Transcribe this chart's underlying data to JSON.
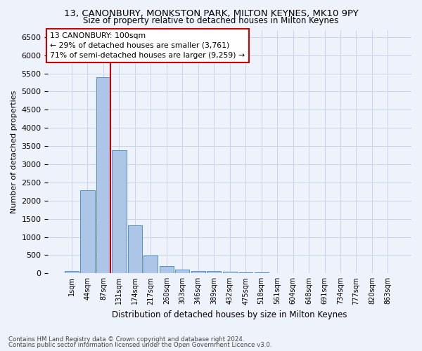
{
  "title": "13, CANONBURY, MONKSTON PARK, MILTON KEYNES, MK10 9PY",
  "subtitle": "Size of property relative to detached houses in Milton Keynes",
  "xlabel": "Distribution of detached houses by size in Milton Keynes",
  "ylabel": "Number of detached properties",
  "footnote1": "Contains HM Land Registry data © Crown copyright and database right 2024.",
  "footnote2": "Contains public sector information licensed under the Open Government Licence v3.0.",
  "annotation_title": "13 CANONBURY: 100sqm",
  "annotation_line1": "← 29% of detached houses are smaller (3,761)",
  "annotation_line2": "71% of semi-detached houses are larger (9,259) →",
  "bar_categories": [
    "1sqm",
    "44sqm",
    "87sqm",
    "131sqm",
    "174sqm",
    "217sqm",
    "260sqm",
    "303sqm",
    "346sqm",
    "389sqm",
    "432sqm",
    "475sqm",
    "518sqm",
    "561sqm",
    "604sqm",
    "648sqm",
    "691sqm",
    "734sqm",
    "777sqm",
    "820sqm",
    "863sqm"
  ],
  "bar_values": [
    70,
    2280,
    5400,
    3380,
    1310,
    490,
    195,
    100,
    70,
    55,
    40,
    30,
    20,
    10,
    5,
    5,
    3,
    2,
    1,
    1,
    1
  ],
  "bar_color": "#adc6e8",
  "bar_edge_color": "#5590c8",
  "vline_color": "#cc0000",
  "annotation_box_color": "#cc0000",
  "grid_color": "#c8d4e8",
  "background_color": "#eef2fb",
  "ylim": [
    0,
    6700
  ],
  "yticks": [
    0,
    500,
    1000,
    1500,
    2000,
    2500,
    3000,
    3500,
    4000,
    4500,
    5000,
    5500,
    6000,
    6500
  ]
}
